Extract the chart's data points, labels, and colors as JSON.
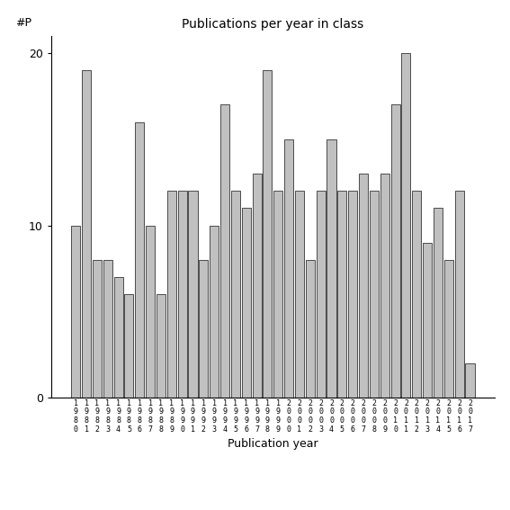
{
  "title": "Publications per year in class",
  "xlabel": "Publication year",
  "ylabel": "#P",
  "bar_color": "#c0c0c0",
  "bar_edgecolor": "#333333",
  "ylim": [
    0,
    21
  ],
  "yticks": [
    0,
    10,
    20
  ],
  "years": [
    1980,
    1981,
    1982,
    1983,
    1984,
    1985,
    1986,
    1987,
    1988,
    1989,
    1990,
    1991,
    1992,
    1993,
    1994,
    1995,
    1996,
    1997,
    1998,
    1999,
    2000,
    2001,
    2002,
    2003,
    2004,
    2005,
    2006,
    2007,
    2008,
    2009,
    2010,
    2011,
    2012,
    2013,
    2014,
    2015,
    2016,
    2017
  ],
  "values": [
    10,
    19,
    8,
    8,
    7,
    6,
    16,
    10,
    6,
    12,
    12,
    12,
    8,
    10,
    17,
    12,
    11,
    13,
    19,
    12,
    15,
    12,
    8,
    12,
    15,
    12,
    12,
    13,
    12,
    13,
    17,
    20,
    12,
    9,
    11,
    8,
    12,
    2
  ],
  "figsize": [
    5.67,
    5.67
  ],
  "dpi": 100
}
